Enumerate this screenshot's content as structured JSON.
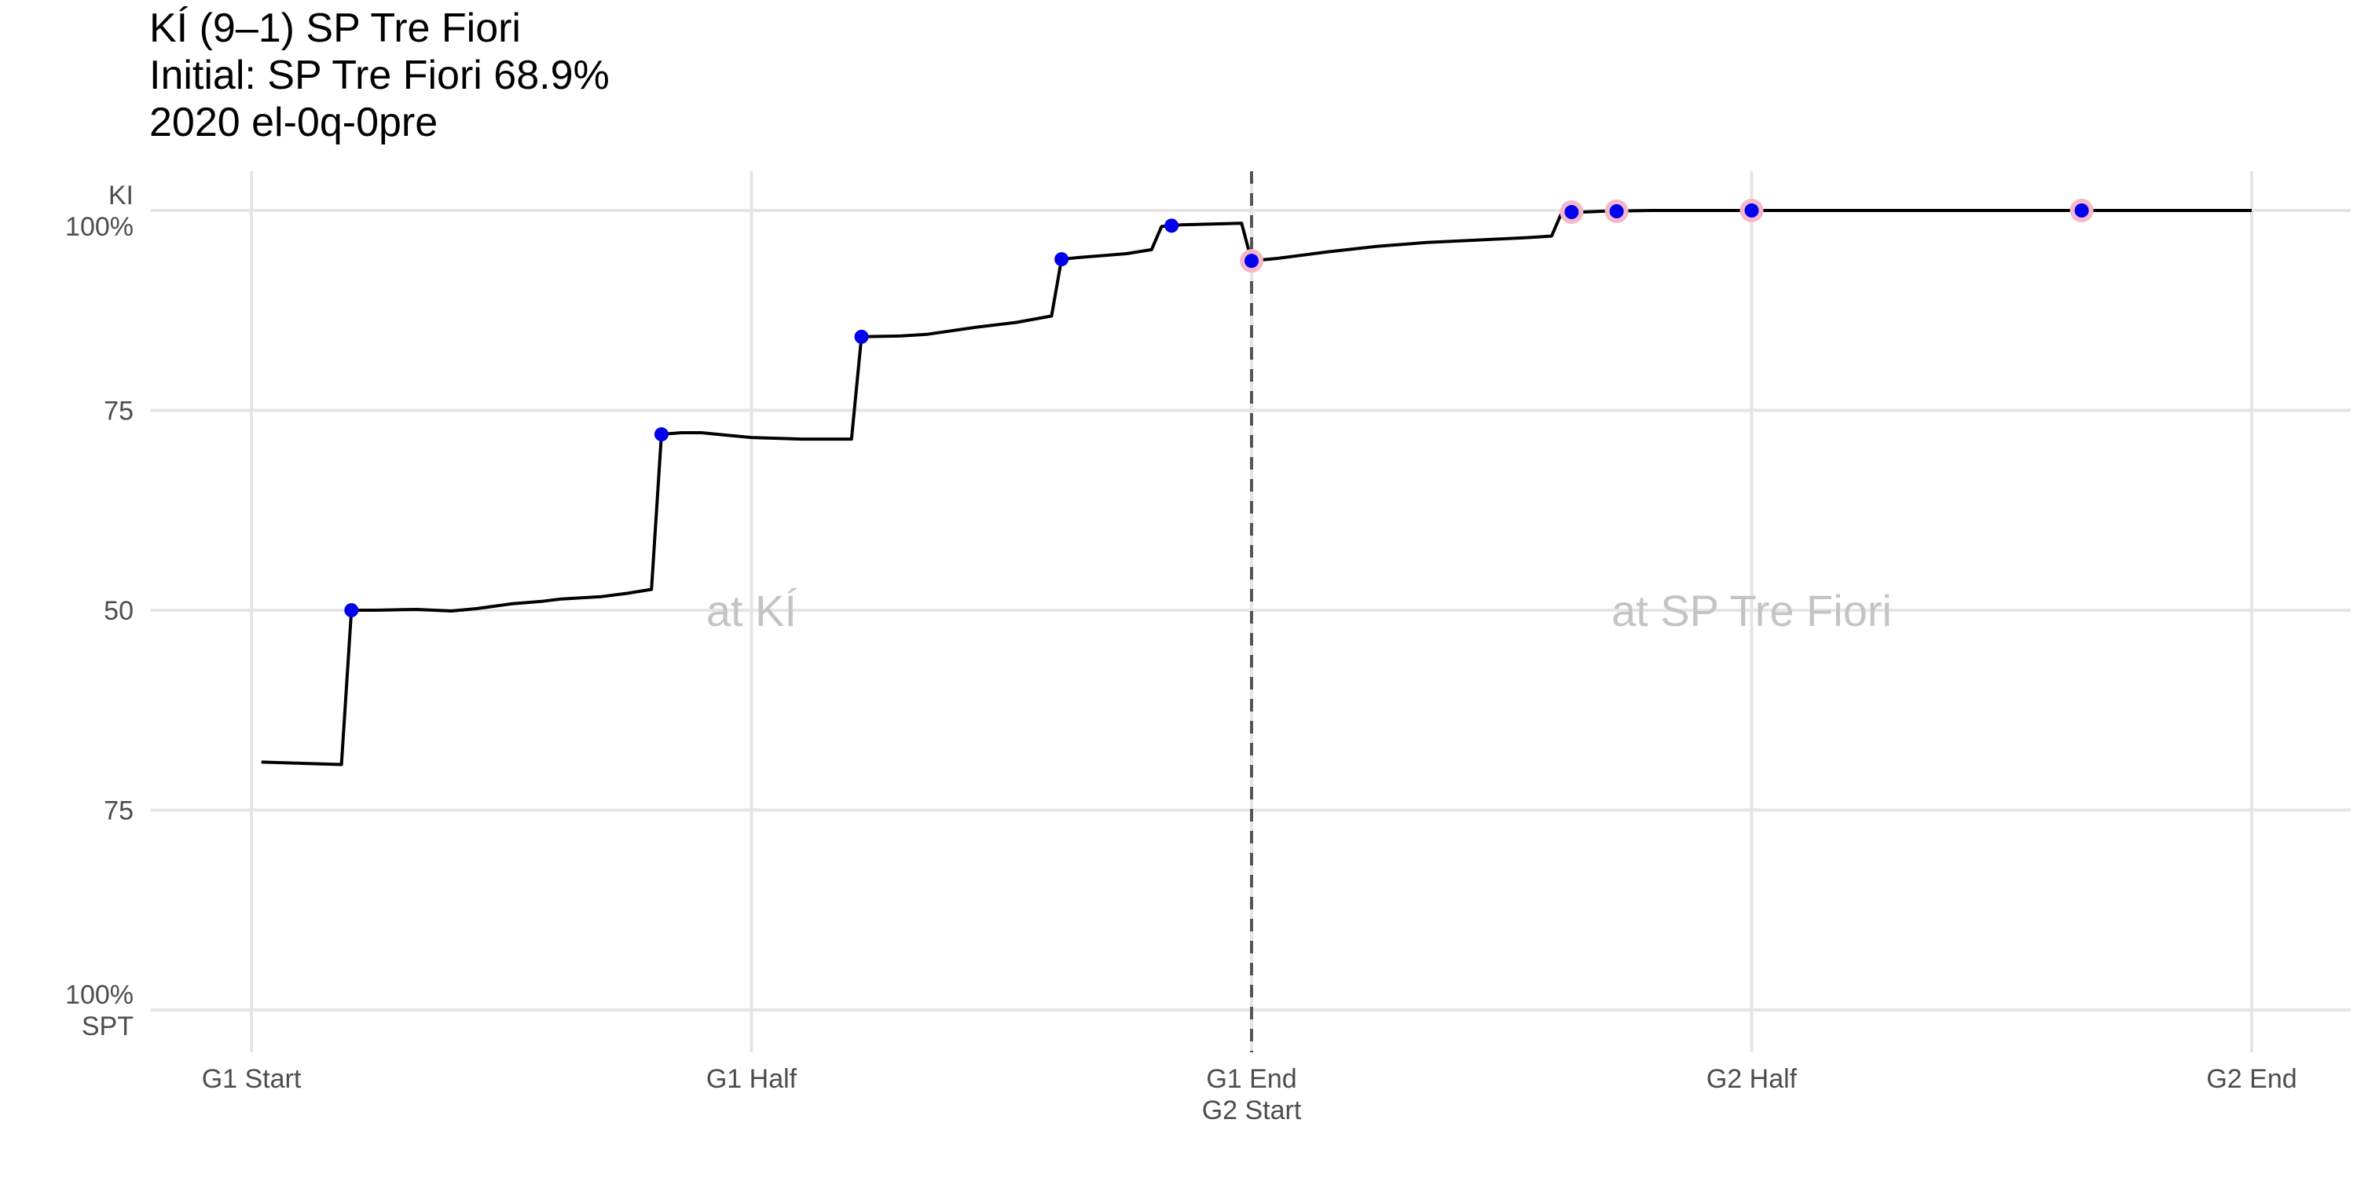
{
  "chart_data": {
    "type": "line",
    "title": "KÍ (9–1) SP Tre Fiori",
    "subtitle_lines": [
      "Initial: SP Tre Fiori 68.9%",
      "2020 el-0q-0pre"
    ],
    "xlabel": "",
    "ylabel": "",
    "grid": true,
    "legend": "none",
    "xlim": [
      -0.2,
      4.2
    ],
    "ylim": [
      0,
      100
    ],
    "x_ticks": [
      {
        "value": 0,
        "label": [
          "G1 Start"
        ]
      },
      {
        "value": 1,
        "label": [
          "G1 Half"
        ]
      },
      {
        "value": 2,
        "label": [
          "G1 End",
          "G2 Start"
        ]
      },
      {
        "value": 3,
        "label": [
          "G2 Half"
        ]
      },
      {
        "value": 4,
        "label": [
          "G2 End"
        ]
      }
    ],
    "y_ticks": [
      {
        "value": 100,
        "label": [
          "KI",
          "100%"
        ]
      },
      {
        "value": 75,
        "label": [
          "75"
        ]
      },
      {
        "value": 50,
        "label": [
          "50"
        ]
      },
      {
        "value": 25,
        "label": [
          "75"
        ]
      },
      {
        "value": 0,
        "label": [
          "100%",
          "SPT"
        ]
      }
    ],
    "divider_x": 2,
    "region_labels": [
      {
        "text": "at KÍ",
        "x": 1.0,
        "y": 50
      },
      {
        "text": "at SP Tre Fiori",
        "x": 3.0,
        "y": 50
      }
    ],
    "series": [
      {
        "color": "#000000",
        "points": [
          [
            0.02,
            31.0
          ],
          [
            0.18,
            30.7
          ],
          [
            0.2,
            50.0
          ],
          [
            0.25,
            50.0
          ],
          [
            0.33,
            50.1
          ],
          [
            0.4,
            49.9
          ],
          [
            0.45,
            50.2
          ],
          [
            0.52,
            50.8
          ],
          [
            0.58,
            51.1
          ],
          [
            0.62,
            51.4
          ],
          [
            0.7,
            51.7
          ],
          [
            0.75,
            52.1
          ],
          [
            0.8,
            52.6
          ],
          [
            0.82,
            72.0
          ],
          [
            0.86,
            72.2
          ],
          [
            0.9,
            72.2
          ],
          [
            0.95,
            71.9
          ],
          [
            1.0,
            71.6
          ],
          [
            1.1,
            71.4
          ],
          [
            1.2,
            71.4
          ],
          [
            1.22,
            84.2
          ],
          [
            1.3,
            84.3
          ],
          [
            1.35,
            84.5
          ],
          [
            1.45,
            85.4
          ],
          [
            1.53,
            86.0
          ],
          [
            1.6,
            86.8
          ],
          [
            1.62,
            93.9
          ],
          [
            1.65,
            94.1
          ],
          [
            1.75,
            94.6
          ],
          [
            1.8,
            95.1
          ],
          [
            1.82,
            98.0
          ],
          [
            1.86,
            98.2
          ],
          [
            1.98,
            98.4
          ],
          [
            2.0,
            93.7
          ],
          [
            2.05,
            94.0
          ],
          [
            2.15,
            94.8
          ],
          [
            2.25,
            95.5
          ],
          [
            2.35,
            96.0
          ],
          [
            2.45,
            96.3
          ],
          [
            2.55,
            96.6
          ],
          [
            2.6,
            96.8
          ],
          [
            2.62,
            99.7
          ],
          [
            2.7,
            99.9
          ],
          [
            2.8,
            100.0
          ],
          [
            3.0,
            100.0
          ],
          [
            3.3,
            100.0
          ],
          [
            3.66,
            100.0
          ],
          [
            4.0,
            100.0
          ]
        ],
        "markers": [
          {
            "x": 0.2,
            "y": 50.0,
            "halo": false
          },
          {
            "x": 0.82,
            "y": 72.0,
            "halo": false
          },
          {
            "x": 1.22,
            "y": 84.2,
            "halo": false
          },
          {
            "x": 1.62,
            "y": 93.9,
            "halo": false
          },
          {
            "x": 1.84,
            "y": 98.1,
            "halo": false
          },
          {
            "x": 2.0,
            "y": 93.7,
            "halo": true
          },
          {
            "x": 2.64,
            "y": 99.8,
            "halo": true
          },
          {
            "x": 2.73,
            "y": 99.9,
            "halo": true
          },
          {
            "x": 3.0,
            "y": 100.0,
            "halo": true
          },
          {
            "x": 3.66,
            "y": 100.0,
            "halo": true
          }
        ],
        "marker_color": "#0000ee",
        "halo_color": "#f4b8c8"
      }
    ],
    "colors": {
      "grid": "#e5e5e5",
      "divider": "#555555",
      "tick_text": "#4d4d4d",
      "region_text": "#c4c4c4"
    }
  }
}
